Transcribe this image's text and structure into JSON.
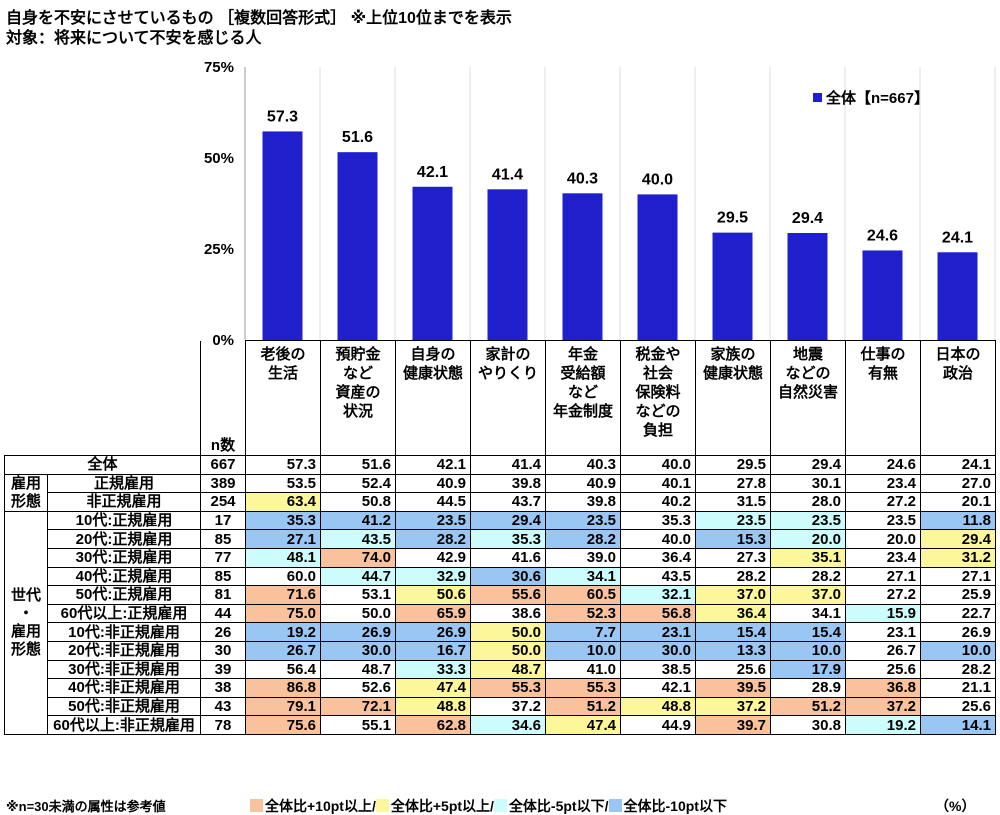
{
  "title": "自身を不安にさせているもの ［複数回答形式］ ※上位10位までを表示",
  "subtitle": "対象：将来について不安を感じる人",
  "chart_data": {
    "type": "bar",
    "categories": [
      "老後の\n生活",
      "預貯金\nなど\n資産の\n状況",
      "自身の\n健康状態",
      "家計の\nやりくり",
      "年金\n受給額\nなど\n年金制度",
      "税金や\n社会\n保険料\nなどの\n負担",
      "家族の\n健康状態",
      "地震\nなどの\n自然災害",
      "仕事の\n有無",
      "日本の\n政治"
    ],
    "series": [
      {
        "name": "全体【n=667】",
        "values": [
          57.3,
          51.6,
          42.1,
          41.4,
          40.3,
          40.0,
          29.5,
          29.4,
          24.6,
          24.1
        ]
      }
    ],
    "ylim": [
      0,
      75
    ],
    "yticks": [
      "0%",
      "25%",
      "50%",
      "75%"
    ],
    "ytick_values": [
      0,
      25,
      50,
      75
    ],
    "legend_placement": "top-right",
    "bar_color": "#1f1fcc",
    "grid": false
  },
  "table": {
    "n_header": "n数",
    "total": {
      "label": "全体",
      "n": "667",
      "values": [
        57.3,
        51.6,
        42.1,
        41.4,
        40.3,
        40.0,
        29.5,
        29.4,
        24.6,
        24.1
      ]
    },
    "groups": [
      {
        "label": "雇用\n形態",
        "rows": [
          {
            "label": "正規雇用",
            "n": "389",
            "values": [
              53.5,
              52.4,
              40.9,
              39.8,
              40.9,
              40.1,
              27.8,
              30.1,
              23.4,
              27.0
            ]
          },
          {
            "label": "非正規雇用",
            "n": "254",
            "values": [
              63.4,
              50.8,
              44.5,
              43.7,
              39.8,
              40.2,
              31.5,
              28.0,
              27.2,
              20.1
            ]
          }
        ]
      },
      {
        "label": "世代\n・\n雇用\n形態",
        "rows": [
          {
            "label": "10代:正規雇用",
            "n": "17",
            "values": [
              35.3,
              41.2,
              23.5,
              29.4,
              23.5,
              35.3,
              23.5,
              23.5,
              23.5,
              11.8
            ]
          },
          {
            "label": "20代:正規雇用",
            "n": "85",
            "values": [
              27.1,
              43.5,
              28.2,
              35.3,
              28.2,
              40.0,
              15.3,
              20.0,
              20.0,
              29.4
            ]
          },
          {
            "label": "30代:正規雇用",
            "n": "77",
            "values": [
              48.1,
              74.0,
              42.9,
              41.6,
              39.0,
              36.4,
              27.3,
              35.1,
              23.4,
              31.2
            ]
          },
          {
            "label": "40代:正規雇用",
            "n": "85",
            "values": [
              60.0,
              44.7,
              32.9,
              30.6,
              34.1,
              43.5,
              28.2,
              28.2,
              27.1,
              27.1
            ]
          },
          {
            "label": "50代:正規雇用",
            "n": "81",
            "values": [
              71.6,
              53.1,
              50.6,
              55.6,
              60.5,
              32.1,
              37.0,
              37.0,
              27.2,
              25.9
            ]
          },
          {
            "label": "60代以上:正規雇用",
            "n": "44",
            "values": [
              75.0,
              50.0,
              65.9,
              38.6,
              52.3,
              56.8,
              36.4,
              34.1,
              15.9,
              22.7
            ]
          },
          {
            "label": "10代:非正規雇用",
            "n": "26",
            "values": [
              19.2,
              26.9,
              26.9,
              50.0,
              7.7,
              23.1,
              15.4,
              15.4,
              23.1,
              26.9
            ]
          },
          {
            "label": "20代:非正規雇用",
            "n": "30",
            "values": [
              26.7,
              30.0,
              16.7,
              50.0,
              10.0,
              30.0,
              13.3,
              10.0,
              26.7,
              10.0
            ]
          },
          {
            "label": "30代:非正規雇用",
            "n": "39",
            "values": [
              56.4,
              48.7,
              33.3,
              48.7,
              41.0,
              38.5,
              25.6,
              17.9,
              25.6,
              28.2
            ]
          },
          {
            "label": "40代:非正規雇用",
            "n": "38",
            "values": [
              86.8,
              52.6,
              47.4,
              55.3,
              55.3,
              42.1,
              39.5,
              28.9,
              36.8,
              21.1
            ]
          },
          {
            "label": "50代:非正規雇用",
            "n": "43",
            "values": [
              79.1,
              72.1,
              48.8,
              37.2,
              51.2,
              48.8,
              37.2,
              51.2,
              37.2,
              25.6
            ]
          },
          {
            "label": "60代以上:非正規雇用",
            "n": "78",
            "values": [
              75.6,
              55.1,
              62.8,
              34.6,
              47.4,
              44.9,
              39.7,
              30.8,
              19.2,
              14.1
            ]
          }
        ]
      }
    ]
  },
  "footnote": "※n=30未満の属性は参考値",
  "legend": [
    {
      "label": "全体比+10pt以上/",
      "color": "#f9c29c",
      "min_diff": 10
    },
    {
      "label": "全体比+5pt以上/",
      "color": "#fdf79c",
      "min_diff": 5
    },
    {
      "label": "全体比-5pt以下/",
      "color": "#ccfcfc",
      "max_diff": -5
    },
    {
      "label": "全体比-10pt以下",
      "color": "#99c6f2",
      "max_diff": -10
    }
  ],
  "unit": "（%）"
}
